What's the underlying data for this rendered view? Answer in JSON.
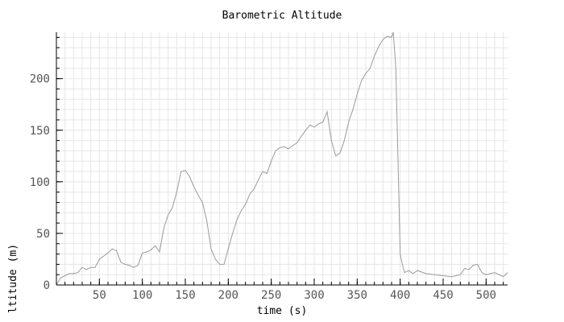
{
  "chart_data": {
    "type": "line",
    "title": "Barometric Altitude",
    "xlabel": "time (s)",
    "ylabel": "ltitude (m)",
    "xlim": [
      0,
      525
    ],
    "ylim": [
      0,
      245
    ],
    "x_ticks": [
      50,
      100,
      150,
      200,
      250,
      300,
      350,
      400,
      450,
      500
    ],
    "y_ticks": [
      0,
      50,
      100,
      150,
      200
    ],
    "grid": true,
    "colors": {
      "line": "#9a9a9a",
      "grid": "#e6e6e6",
      "axis": "#000000",
      "tick_label": "#555555"
    },
    "series": [
      {
        "x": [
          0,
          5,
          10,
          15,
          20,
          25,
          30,
          35,
          40,
          45,
          50,
          55,
          60,
          65,
          70,
          75,
          80,
          85,
          90,
          95,
          100,
          105,
          110,
          115,
          120,
          125,
          130,
          135,
          140,
          145,
          150,
          155,
          160,
          165,
          170,
          175,
          180,
          185,
          190,
          195,
          200,
          205,
          210,
          215,
          220,
          225,
          230,
          235,
          240,
          245,
          250,
          255,
          260,
          265,
          270,
          275,
          280,
          285,
          290,
          295,
          300,
          305,
          310,
          315,
          320,
          325,
          330,
          335,
          340,
          345,
          350,
          355,
          360,
          365,
          370,
          375,
          380,
          385,
          390,
          392,
          395,
          400,
          402,
          405,
          410,
          415,
          420,
          430,
          440,
          450,
          460,
          470,
          475,
          480,
          485,
          490,
          495,
          500,
          505,
          510,
          515,
          520,
          525
        ],
        "y": [
          0,
          7,
          9,
          11,
          11,
          12,
          17,
          15,
          17,
          17,
          25,
          28,
          31,
          35,
          33,
          22,
          20,
          19,
          17,
          19,
          31,
          32,
          34,
          38,
          32,
          55,
          68,
          75,
          90,
          110,
          111,
          105,
          95,
          87,
          80,
          62,
          35,
          25,
          20,
          20,
          35,
          50,
          63,
          72,
          78,
          88,
          93,
          102,
          110,
          108,
          120,
          130,
          133,
          134,
          132,
          135,
          138,
          144,
          150,
          155,
          153,
          156,
          158,
          168,
          140,
          125,
          128,
          140,
          158,
          170,
          185,
          198,
          205,
          210,
          222,
          231,
          238,
          241,
          240,
          245,
          210,
          30,
          22,
          12,
          14,
          11,
          14,
          11,
          10,
          9,
          8,
          10,
          16,
          15,
          19,
          20,
          12,
          10,
          11,
          12,
          10,
          8,
          12
        ]
      }
    ]
  }
}
